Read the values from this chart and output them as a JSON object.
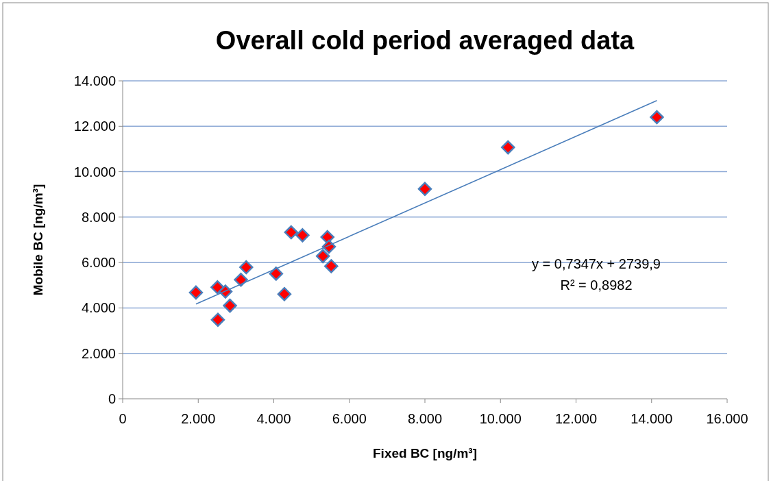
{
  "chart_data": {
    "type": "scatter",
    "title": "Overall cold period averaged data",
    "xlabel": "Fixed BC [ng/m³]",
    "ylabel": "Mobile BC [ng/m³]",
    "xlim": [
      0,
      16000
    ],
    "ylim": [
      0,
      14000
    ],
    "xticks": [
      0,
      {
        "value": 2000,
        "label": "2.000"
      },
      {
        "value": 4000,
        "label": "4.000"
      },
      {
        "value": 6000,
        "label": "6.000"
      },
      {
        "value": 8000,
        "label": "8.000"
      },
      {
        "value": 10000,
        "label": "10.000"
      },
      {
        "value": 12000,
        "label": "12.000"
      },
      {
        "value": 14000,
        "label": "14.000"
      },
      {
        "value": 16000,
        "label": "16.000"
      }
    ],
    "yticks": [
      0,
      {
        "value": 2000,
        "label": "2.000"
      },
      {
        "value": 4000,
        "label": "4.000"
      },
      {
        "value": 6000,
        "label": "6.000"
      },
      {
        "value": 8000,
        "label": "8.000"
      },
      {
        "value": 10000,
        "label": "10.000"
      },
      {
        "value": 12000,
        "label": "12.000"
      },
      {
        "value": 14000,
        "label": "14.000"
      }
    ],
    "grid": "y",
    "marker": "diamond",
    "series": [
      {
        "color": "#ff0000",
        "x": [
          1940,
          2510,
          2720,
          2840,
          2520,
          3130,
          3270,
          4060,
          4280,
          4460,
          4760,
          5420,
          5460,
          5300,
          5520,
          8000,
          10200,
          14140
        ],
        "values": [
          4680,
          4910,
          4720,
          4100,
          3480,
          5240,
          5790,
          5510,
          4610,
          7330,
          7200,
          7120,
          6700,
          6280,
          5840,
          9240,
          11070,
          12400
        ]
      },
      {
        "type": "line",
        "color": "#4a7ebb",
        "marker": "none",
        "x": [
          1940,
          14140
        ],
        "values": [
          4170,
          13130
        ]
      }
    ],
    "annotations": [
      "y = 0,7347x + 2739,9",
      "R² = 0,8982"
    ]
  }
}
